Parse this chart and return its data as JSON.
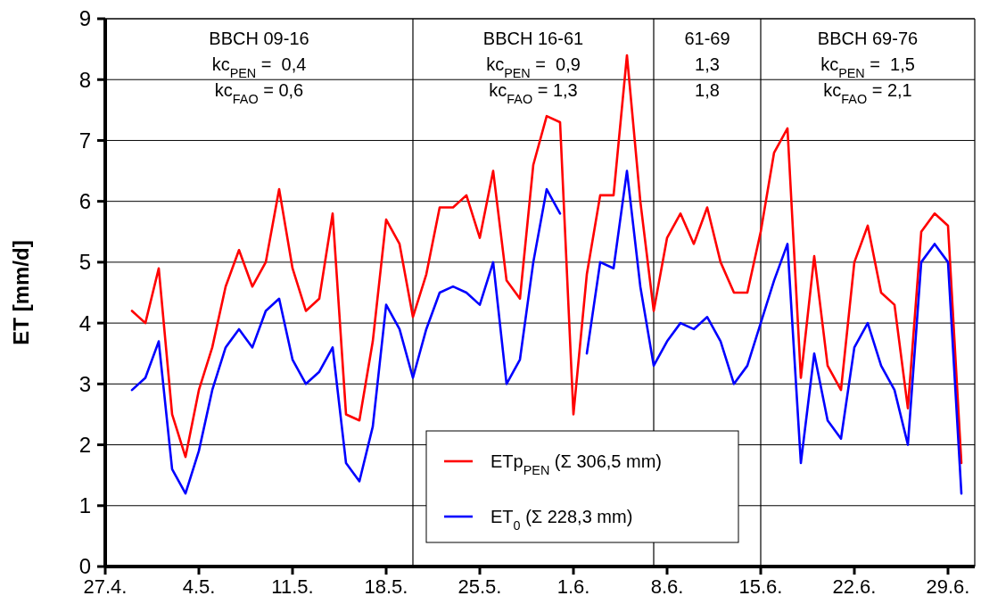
{
  "chart_data": {
    "type": "line",
    "ylabel": "ET [mm/d]",
    "x": [
      "--04-29",
      "--04-30",
      "--05-01",
      "--05-02",
      "--05-03",
      "--05-04",
      "--05-05",
      "--05-06",
      "--05-07",
      "--05-08",
      "--05-09",
      "--05-10",
      "--05-11",
      "--05-12",
      "--05-13",
      "--05-14",
      "--05-15",
      "--05-16",
      "--05-17",
      "--05-18",
      "--05-19",
      "--05-20",
      "--05-21",
      "--05-22",
      "--05-23",
      "--05-24",
      "--05-25",
      "--05-26",
      "--05-27",
      "--05-28",
      "--05-29",
      "--05-30",
      "--05-31",
      "--06-01",
      "--06-02",
      "--06-03",
      "--06-04",
      "--06-05",
      "--06-06",
      "--06-07",
      "--06-08",
      "--06-09",
      "--06-10",
      "--06-11",
      "--06-12",
      "--06-13",
      "--06-14",
      "--06-15",
      "--06-16",
      "--06-17",
      "--06-18",
      "--06-19",
      "--06-20",
      "--06-21",
      "--06-22",
      "--06-23",
      "--06-24",
      "--06-25",
      "--06-26",
      "--06-27",
      "--06-28",
      "--06-29",
      "--06-30"
    ],
    "series": [
      {
        "name": "ETp$_{PEN}$ (Σ 306,5 mm)",
        "color": "#ff0000",
        "values": [
          4.2,
          4.0,
          4.9,
          2.5,
          1.8,
          2.9,
          3.6,
          4.6,
          5.2,
          4.6,
          5.0,
          6.2,
          4.9,
          4.2,
          4.4,
          5.8,
          2.5,
          2.4,
          3.7,
          5.7,
          5.3,
          4.1,
          4.8,
          5.9,
          5.9,
          6.1,
          5.4,
          6.5,
          4.7,
          4.4,
          6.6,
          7.4,
          7.3,
          2.5,
          4.8,
          6.1,
          6.1,
          8.4,
          6.0,
          4.2,
          5.4,
          5.8,
          5.3,
          5.9,
          5.0,
          4.5,
          4.5,
          5.5,
          6.8,
          7.2,
          3.1,
          5.1,
          3.3,
          2.9,
          5.0,
          5.6,
          4.5,
          4.3,
          2.6,
          5.5,
          5.8,
          5.6,
          1.7
        ]
      },
      {
        "name": "ET$_{0}$ (Σ 228,3 mm)",
        "color": "#0000ff",
        "values": [
          2.9,
          3.1,
          3.7,
          1.6,
          1.2,
          1.9,
          2.9,
          3.6,
          3.9,
          3.6,
          4.2,
          4.4,
          3.4,
          3.0,
          3.2,
          3.6,
          1.7,
          1.4,
          2.3,
          4.3,
          3.9,
          3.1,
          3.9,
          4.5,
          4.6,
          4.5,
          4.3,
          5.0,
          3.0,
          3.4,
          5.0,
          6.2,
          5.8,
          null,
          3.5,
          5.0,
          4.9,
          6.5,
          4.6,
          3.3,
          3.7,
          4.0,
          3.9,
          4.1,
          3.7,
          3.0,
          3.3,
          4.0,
          4.7,
          5.3,
          1.7,
          3.5,
          2.4,
          2.1,
          3.6,
          4.0,
          3.3,
          2.9,
          2.0,
          5.0,
          5.3,
          5.0,
          1.2
        ]
      }
    ],
    "xlim": [
      "--04-27",
      "--07-01"
    ],
    "xticks": [
      {
        "value": "--04-27",
        "label": "27.4."
      },
      {
        "value": "--05-04",
        "label": "4.5."
      },
      {
        "value": "--05-11",
        "label": "11.5."
      },
      {
        "value": "--05-18",
        "label": "18.5."
      },
      {
        "value": "--05-25",
        "label": "25.5."
      },
      {
        "value": "--06-01",
        "label": "1.6."
      },
      {
        "value": "--06-08",
        "label": "8.6."
      },
      {
        "value": "--06-15",
        "label": "15.6."
      },
      {
        "value": "--06-22",
        "label": "22.6."
      },
      {
        "value": "--06-29",
        "label": "29.6."
      }
    ],
    "ylim": [
      0,
      9
    ],
    "yticks": [
      0,
      1,
      2,
      3,
      4,
      5,
      6,
      7,
      8,
      9
    ],
    "grid": "y",
    "legend": "bottom",
    "marker": "none",
    "line_style": "solid",
    "ref_lines": [
      {
        "axis": "x",
        "value": "--05-20",
        "color": "#000000"
      },
      {
        "axis": "x",
        "value": "--06-07",
        "color": "#000000"
      },
      {
        "axis": "x",
        "value": "--06-15",
        "color": "#000000"
      }
    ],
    "annotations": [
      "BBCH 09-16",
      "kc$_{PEN}$ =  0,4",
      "kc$_{FAO}$ = 0,6",
      "BBCH 16-61",
      "kc$_{PEN}$ =  0,9",
      "kc$_{FAO}$ = 1,3",
      "61-69",
      "1,3",
      "1,8",
      "BBCH 69-76",
      "kc$_{PEN}$ =  1,5",
      "kc$_{FAO}$ = 2,1"
    ]
  }
}
